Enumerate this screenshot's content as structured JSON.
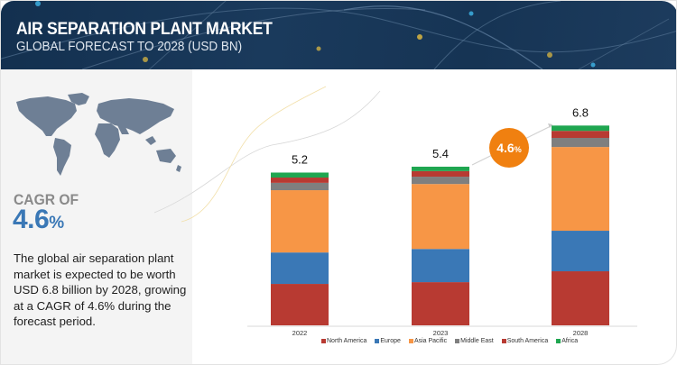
{
  "header": {
    "title": "AIR SEPARATION PLANT MARKET",
    "subtitle": "GLOBAL FORECAST TO 2028 (USD BN)"
  },
  "summary": {
    "cagr_label": "CAGR OF",
    "cagr_value": "4.6",
    "cagr_unit": "%",
    "description": "The global air separation plant market is expected to be worth USD 6.8 billion by 2028, growing at a CAGR of 4.6% during the forecast period."
  },
  "growth_badge": {
    "value": "4.6",
    "unit": "%",
    "color": "#f08010"
  },
  "colors": {
    "header_bg": "#1a3a5c",
    "accent_blue": "#3a78b6"
  },
  "chart_data": {
    "type": "bar",
    "stacked": true,
    "title": "Air Separation Plant Market, Global Forecast to 2028 (USD BN)",
    "xlabel": "",
    "ylabel": "USD BN",
    "categories": [
      "2022",
      "2023",
      "2028"
    ],
    "totals": [
      "5.2",
      "5.4",
      "6.8"
    ],
    "total_values": [
      5.2,
      5.4,
      6.8
    ],
    "ylim": [
      0,
      7
    ],
    "grid": false,
    "legend_position": "bottom",
    "series": [
      {
        "name": "North America",
        "color": "#b83a32",
        "values": [
          1.41,
          1.47,
          1.84
        ]
      },
      {
        "name": "Europe",
        "color": "#3a78b6",
        "values": [
          1.07,
          1.13,
          1.38
        ]
      },
      {
        "name": "Asia Pacific",
        "color": "#f79646",
        "values": [
          2.12,
          2.21,
          2.85
        ]
      },
      {
        "name": "Middle East",
        "color": "#7f7f7f",
        "values": [
          0.25,
          0.25,
          0.31
        ]
      },
      {
        "name": "South America",
        "color": "#b83a32",
        "values": [
          0.18,
          0.19,
          0.24
        ]
      },
      {
        "name": "Africa",
        "color": "#1fa650",
        "values": [
          0.17,
          0.15,
          0.18
        ]
      }
    ],
    "annotations": [
      "CAGR 4.6% from 2023 to 2028"
    ]
  }
}
